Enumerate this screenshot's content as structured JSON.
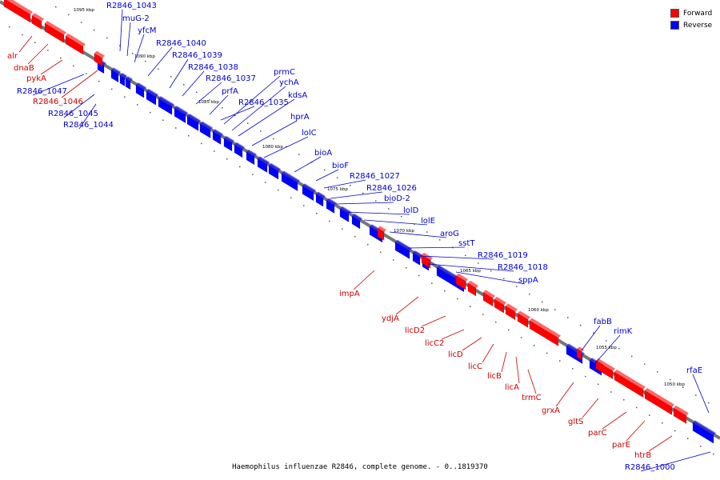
{
  "genome_caption": "Haemophilus influenzae R2846, complete genome. - 0..1819370",
  "legend": {
    "forward_label": "Forward",
    "reverse_label": "Reverse",
    "forward_color": "#ff0000",
    "reverse_color": "#0000ff"
  },
  "colors": {
    "backbone": "#777777",
    "forward_label": "#cc0000",
    "reverse_label": "#0000cc"
  },
  "scale_labels": [
    "1095 kbp",
    "1090 kbp",
    "1085 kbp",
    "1080 kbp",
    "1075 kbp",
    "1070 kbp",
    "1065 kbp",
    "1060 kbp",
    "1055 kbp",
    "1050 kbp"
  ],
  "reverse_genes": [
    "R2846_1043",
    "muG-2",
    "yfcM",
    "R2846_1040",
    "R2846_1039",
    "R2846_1038",
    "R2846_1037",
    "prfA",
    "prmC",
    "ychA",
    "kdsA",
    "R2846_1035",
    "hprA",
    "lolC",
    "bioA",
    "bioF",
    "R2846_1027",
    "R2846_1026",
    "bioD-2",
    "lolD",
    "lolE",
    "aroG",
    "sstT",
    "R2846_1019",
    "R2846_1018",
    "sppA",
    "fabB",
    "rimK",
    "rfaE",
    "R2846_1000",
    "R2846_1047",
    "R2846_1045",
    "R2846_1044"
  ],
  "forward_genes": [
    "alr",
    "dnaB",
    "pykA",
    "R2846_1046",
    "impA",
    "ydjA",
    "licD2",
    "licC2",
    "licD",
    "licC",
    "licB",
    "licA",
    "trmC",
    "grxA",
    "gltS",
    "parC",
    "parE",
    "htrB"
  ]
}
